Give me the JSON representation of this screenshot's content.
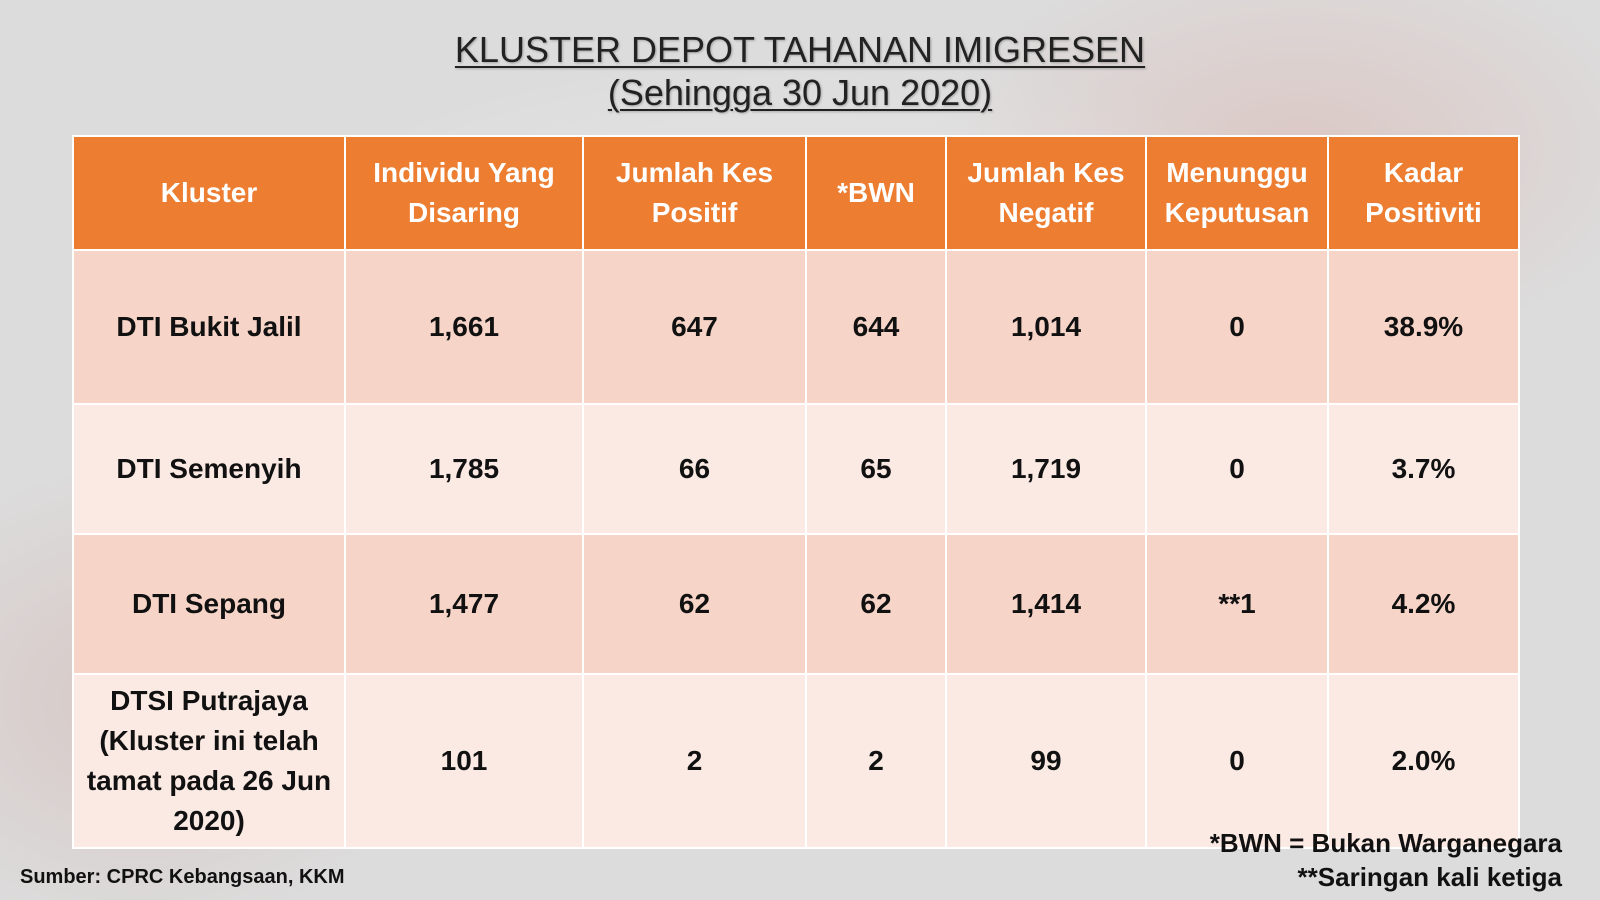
{
  "title": {
    "line1": "KLUSTER DEPOT TAHANAN IMIGRESEN",
    "line2": "(Sehingga 30 Jun 2020)"
  },
  "table": {
    "headers": [
      "Kluster",
      "Individu Yang Disaring",
      "Jumlah Kes Positif",
      "*BWN",
      "Jumlah Kes Negatif",
      "Menunggu Keputusan",
      "Kadar Positiviti"
    ],
    "rows": [
      [
        "DTI Bukit Jalil",
        "1,661",
        "647",
        "644",
        "1,014",
        "0",
        "38.9%"
      ],
      [
        "DTI Semenyih",
        "1,785",
        "66",
        "65",
        "1,719",
        "0",
        "3.7%"
      ],
      [
        "DTI Sepang",
        "1,477",
        "62",
        "62",
        "1,414",
        "**1",
        "4.2%"
      ],
      [
        "DTSI Putrajaya (Kluster ini telah tamat pada 26 Jun 2020)",
        "101",
        "2",
        "2",
        "99",
        "0",
        "2.0%"
      ]
    ]
  },
  "footnotes": {
    "bwn": "*BWN = Bukan Warganegara",
    "saringan": "**Saringan kali ketiga"
  },
  "source": "Sumber: CPRC Kebangsaan, KKM",
  "colors": {
    "header_bg": "#ec7d31",
    "row_odd_bg": "#f7d4c8",
    "row_even_bg": "#fbeae4"
  }
}
